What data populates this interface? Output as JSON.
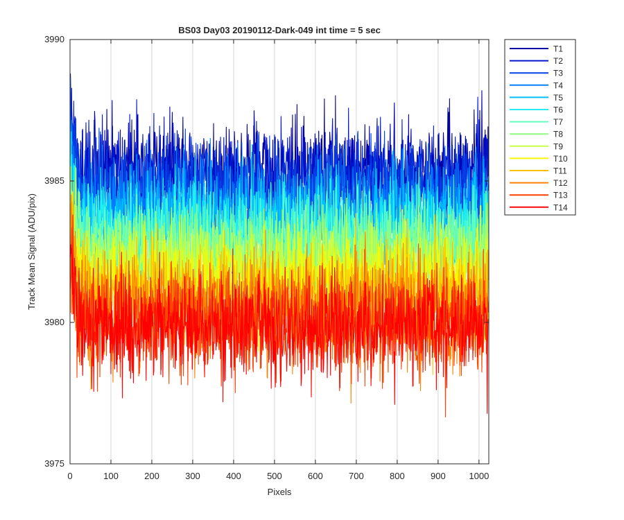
{
  "chart_data": {
    "type": "line",
    "title": "BS03 Day03 20190112-Dark-049 int time = 5 sec",
    "xlabel": "Pixels",
    "ylabel": "Track Mean Signal (ADU/pix)",
    "xlim": [
      0,
      1024
    ],
    "ylim": [
      3975,
      3990
    ],
    "xticks": [
      0,
      100,
      200,
      300,
      400,
      500,
      600,
      700,
      800,
      900,
      1000
    ],
    "yticks": [
      3975,
      3980,
      3985,
      3990
    ],
    "grid": "x-only",
    "legend_position": "outside-top-right",
    "n_points": 1024,
    "series": [
      {
        "name": "T1",
        "color": "#0000AA",
        "mean": 3985.3,
        "spread": 1.1,
        "seed": 11
      },
      {
        "name": "T2",
        "color": "#0014CC",
        "mean": 3985.0,
        "spread": 1.1,
        "seed": 23
      },
      {
        "name": "T3",
        "color": "#0040E6",
        "mean": 3984.6,
        "spread": 1.1,
        "seed": 37
      },
      {
        "name": "T4",
        "color": "#0080FF",
        "mean": 3984.0,
        "spread": 1.1,
        "seed": 41
      },
      {
        "name": "T5",
        "color": "#00BFFF",
        "mean": 3983.6,
        "spread": 1.1,
        "seed": 53
      },
      {
        "name": "T6",
        "color": "#20F0F0",
        "mean": 3983.1,
        "spread": 1.1,
        "seed": 67
      },
      {
        "name": "T7",
        "color": "#60FFC0",
        "mean": 3982.7,
        "spread": 1.1,
        "seed": 71
      },
      {
        "name": "T8",
        "color": "#90FF80",
        "mean": 3982.3,
        "spread": 1.1,
        "seed": 83
      },
      {
        "name": "T9",
        "color": "#C8FF40",
        "mean": 3981.9,
        "spread": 1.1,
        "seed": 97
      },
      {
        "name": "T10",
        "color": "#F8F800",
        "mean": 3981.4,
        "spread": 1.1,
        "seed": 101
      },
      {
        "name": "T11",
        "color": "#FFC000",
        "mean": 3980.9,
        "spread": 1.1,
        "seed": 113
      },
      {
        "name": "T12",
        "color": "#FF8000",
        "mean": 3980.4,
        "spread": 1.1,
        "seed": 127
      },
      {
        "name": "T13",
        "color": "#FF4000",
        "mean": 3980.0,
        "spread": 1.1,
        "seed": 131
      },
      {
        "name": "T14",
        "color": "#FF0000",
        "mean": 3979.8,
        "spread": 1.1,
        "seed": 149
      }
    ]
  }
}
